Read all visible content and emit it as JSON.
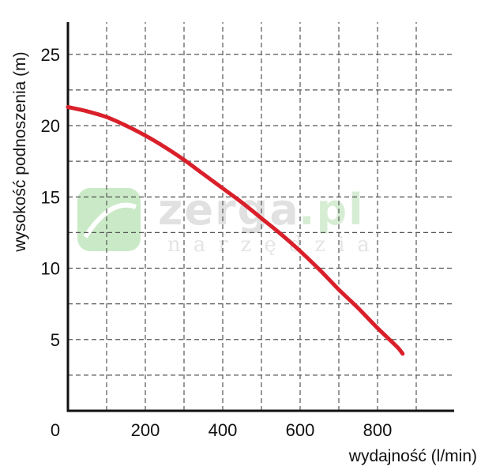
{
  "chart_data": {
    "type": "line",
    "xlabel": "wydajność (l/min)",
    "ylabel": "wysokość podnoszenia (m)",
    "xlim": [
      0,
      1000
    ],
    "ylim": [
      0,
      27.5
    ],
    "x_ticks": [
      0,
      200,
      400,
      600,
      800
    ],
    "y_ticks": [
      5,
      10,
      15,
      20,
      25
    ],
    "origin_label": "0",
    "x_tick_labels": [
      "200",
      "400",
      "600",
      "800"
    ],
    "y_tick_labels": [
      "5",
      "10",
      "15",
      "20",
      "25"
    ],
    "grid": true,
    "grid_style": "dashed",
    "x_grid_step": 100,
    "y_grid_step": 2.5,
    "series": [
      {
        "color": "#d9202a",
        "x": [
          0,
          50,
          100,
          150,
          200,
          250,
          300,
          350,
          400,
          450,
          500,
          550,
          600,
          650,
          700,
          750,
          800,
          850,
          865
        ],
        "y": [
          21.3,
          21.0,
          20.6,
          20.0,
          19.3,
          18.5,
          17.6,
          16.6,
          15.6,
          14.6,
          13.5,
          12.4,
          11.2,
          9.9,
          8.5,
          7.2,
          5.8,
          4.5,
          4.0
        ]
      }
    ]
  },
  "watermark": {
    "brand": "zerga",
    "tld": ".pl",
    "tagline": "narzędzia"
  },
  "colors": {
    "line": "#d9202a",
    "axis": "#111111",
    "grid": "#555555",
    "watermark_green": "#8fd08a",
    "watermark_gray": "#c8c8c8"
  }
}
